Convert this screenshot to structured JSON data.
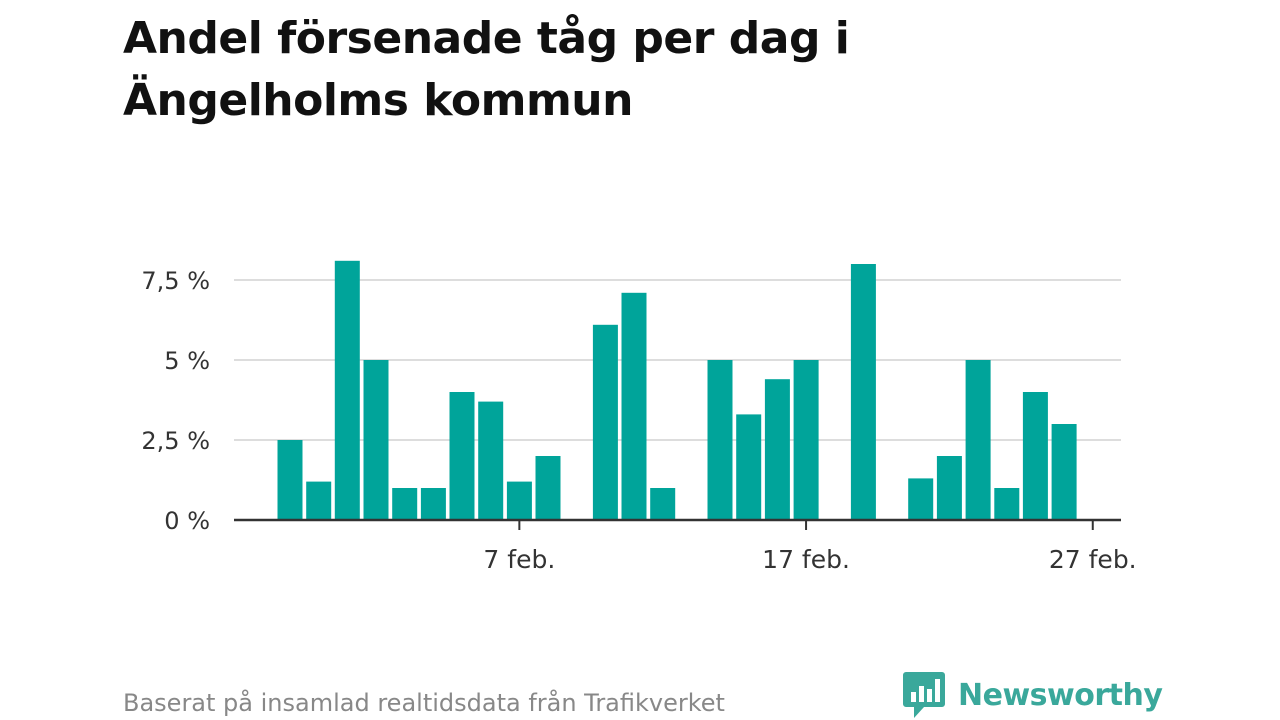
{
  "title": "Andel försenade tåg per dag i Ängelholms kommun",
  "footer": {
    "note": "Baserat på insamlad realtidsdata från Trafikverket",
    "brand": "Newsworthy"
  },
  "colors": {
    "bar": "#00a49a",
    "brand": "#3aa89b",
    "grid": "#dddddd",
    "axis": "#333333",
    "text": "#333333"
  },
  "chart_data": {
    "type": "bar",
    "title": "Andel försenade tåg per dag i Ängelholms kommun",
    "xlabel": "",
    "ylabel": "",
    "x_dates": [
      "2024-01-30",
      "2024-01-31",
      "2024-02-01",
      "2024-02-02",
      "2024-02-03",
      "2024-02-04",
      "2024-02-05",
      "2024-02-06",
      "2024-02-07",
      "2024-02-08",
      "2024-02-09",
      "2024-02-10",
      "2024-02-11",
      "2024-02-12",
      "2024-02-13",
      "2024-02-14",
      "2024-02-15",
      "2024-02-16",
      "2024-02-17",
      "2024-02-18",
      "2024-02-19",
      "2024-02-20",
      "2024-02-21",
      "2024-02-22",
      "2024-02-23",
      "2024-02-24",
      "2024-02-25",
      "2024-02-26",
      "2024-02-27",
      "2024-02-28"
    ],
    "values": [
      2.5,
      1.2,
      8.1,
      5.0,
      1.0,
      1.0,
      4.0,
      3.7,
      1.2,
      2.0,
      null,
      6.1,
      7.1,
      1.0,
      null,
      5.0,
      3.3,
      4.4,
      5.0,
      null,
      8.0,
      null,
      1.3,
      2.0,
      5.0,
      1.0,
      4.0,
      3.0,
      null,
      null
    ],
    "ylim": [
      0,
      8.5
    ],
    "y_ticks": [
      0,
      2.5,
      5,
      7.5
    ],
    "y_tick_labels": [
      "0 %",
      "2,5 %",
      "5 %",
      "7,5 %"
    ],
    "x_tick_dates": [
      "2024-02-07",
      "2024-02-17",
      "2024-02-27"
    ],
    "x_tick_labels": [
      "7 feb.",
      "17 feb.",
      "27 feb."
    ],
    "grid": true,
    "legend": "none"
  }
}
